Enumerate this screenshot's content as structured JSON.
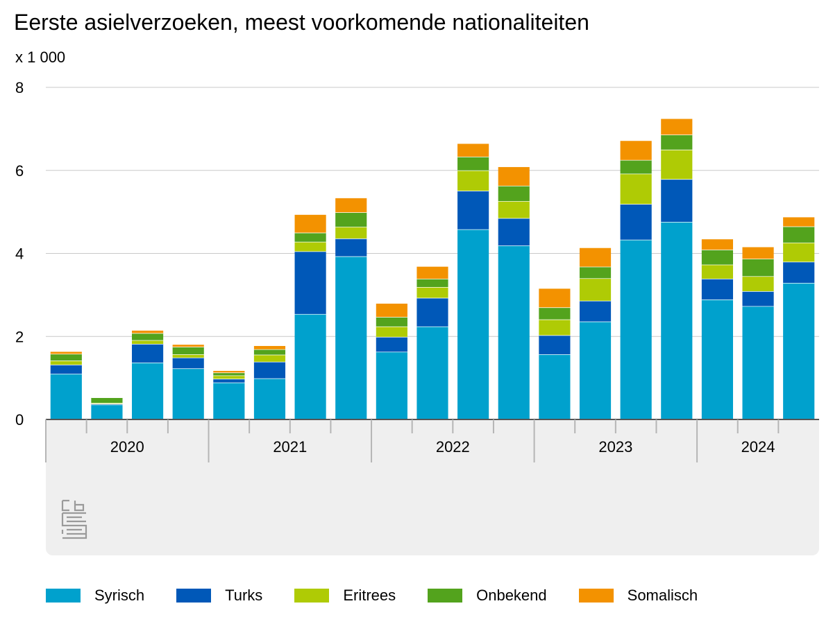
{
  "chart_data": {
    "type": "bar",
    "stacked": true,
    "title": "Eerste asielverzoeken, meest voorkomende nationaliteiten",
    "unit_label": "x 1 000",
    "ylim": [
      0,
      8
    ],
    "yticks": [
      0,
      2,
      4,
      6,
      8
    ],
    "grid": true,
    "legend_position": "bottom",
    "years": [
      "2020",
      "2021",
      "2022",
      "2023",
      "2024"
    ],
    "quarters_per_year": 4,
    "categories": [
      "2020 Q1",
      "2020 Q2",
      "2020 Q3",
      "2020 Q4",
      "2021 Q1",
      "2021 Q2",
      "2021 Q3",
      "2021 Q4",
      "2022 Q1",
      "2022 Q2",
      "2022 Q3",
      "2022 Q4",
      "2023 Q1",
      "2023 Q2",
      "2023 Q3",
      "2023 Q4",
      "2024 Q1",
      "2024 Q2",
      "2024 Q3"
    ],
    "series": [
      {
        "name": "Syrisch",
        "color": "#00a1cd",
        "values": [
          1.1,
          0.36,
          1.37,
          1.23,
          0.89,
          0.99,
          2.54,
          3.93,
          1.63,
          2.24,
          4.58,
          4.19,
          1.57,
          2.36,
          4.33,
          4.76,
          2.89,
          2.73,
          3.29
        ]
      },
      {
        "name": "Turks",
        "color": "#0058b8",
        "values": [
          0.22,
          0.02,
          0.45,
          0.26,
          0.09,
          0.4,
          1.51,
          0.43,
          0.36,
          0.69,
          0.93,
          0.66,
          0.46,
          0.5,
          0.86,
          1.03,
          0.5,
          0.36,
          0.51
        ]
      },
      {
        "name": "Eritrees",
        "color": "#afcb05",
        "values": [
          0.1,
          0.02,
          0.09,
          0.08,
          0.08,
          0.17,
          0.23,
          0.28,
          0.25,
          0.26,
          0.49,
          0.41,
          0.38,
          0.54,
          0.73,
          0.71,
          0.34,
          0.36,
          0.46
        ]
      },
      {
        "name": "Onbekend",
        "color": "#53a31d",
        "values": [
          0.16,
          0.13,
          0.17,
          0.18,
          0.07,
          0.13,
          0.22,
          0.35,
          0.23,
          0.2,
          0.33,
          0.37,
          0.29,
          0.28,
          0.33,
          0.36,
          0.36,
          0.42,
          0.39
        ]
      },
      {
        "name": "Somalisch",
        "color": "#f39200",
        "values": [
          0.05,
          0.0,
          0.06,
          0.05,
          0.04,
          0.08,
          0.43,
          0.34,
          0.32,
          0.29,
          0.31,
          0.45,
          0.45,
          0.45,
          0.46,
          0.38,
          0.25,
          0.28,
          0.22
        ]
      }
    ]
  }
}
